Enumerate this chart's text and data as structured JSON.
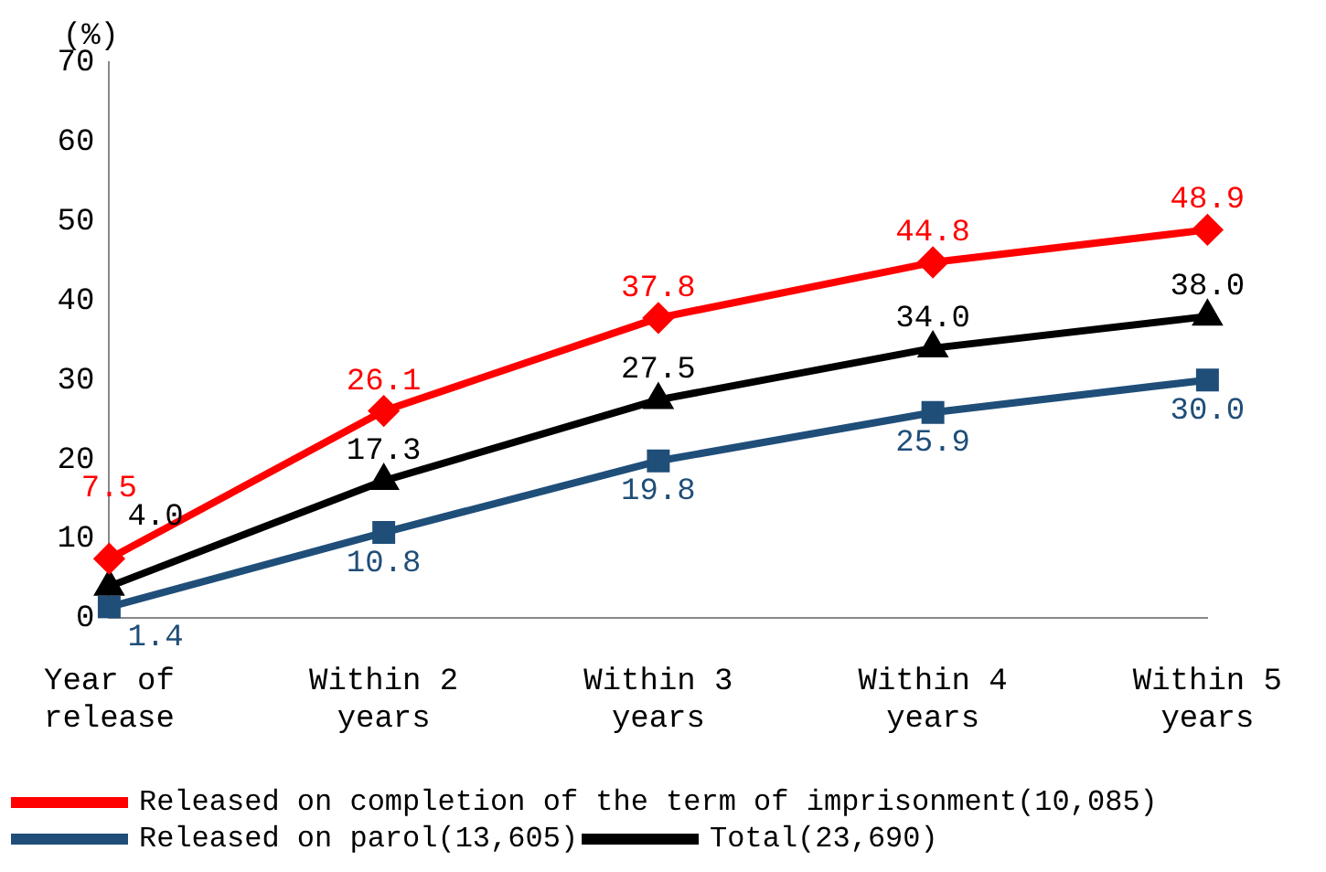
{
  "chart_data": {
    "type": "line",
    "ylabel": "(%)",
    "categories": [
      "Year of release",
      "Within 2 years",
      "Within 3 years",
      "Within 4 years",
      "Within 5 years"
    ],
    "series": [
      {
        "name": "Released on completion of the term of imprisonment(10,085)",
        "color": "#ff0000",
        "marker": "diamond",
        "values": [
          7.5,
          26.1,
          37.8,
          44.8,
          48.9
        ],
        "value_labels": [
          "7.5",
          "26.1",
          "37.8",
          "44.8",
          "48.9"
        ]
      },
      {
        "name": "Released on parol(13,605)",
        "color": "#1f4e79",
        "marker": "square",
        "values": [
          1.4,
          10.8,
          19.8,
          25.9,
          30.0
        ],
        "value_labels": [
          "1.4",
          "10.8",
          "19.8",
          "25.9",
          "30.0"
        ]
      },
      {
        "name": "Total(23,690)",
        "color": "#000000",
        "marker": "triangle",
        "values": [
          4.0,
          17.3,
          27.5,
          34.0,
          38.0
        ],
        "value_labels": [
          "4.0",
          "17.3",
          "27.5",
          "34.0",
          "38.0"
        ]
      }
    ],
    "ylim": [
      0,
      70
    ],
    "yticks": [
      0,
      10,
      20,
      30,
      40,
      50,
      60,
      70
    ],
    "grid": false,
    "legend": "bottom",
    "line_style": "solid"
  }
}
